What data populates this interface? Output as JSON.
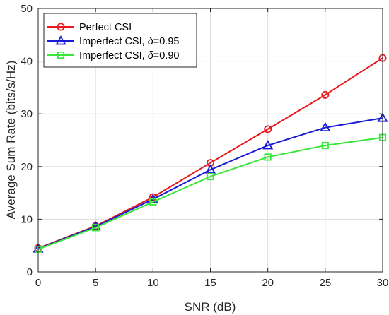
{
  "chart_data": {
    "type": "line",
    "xlabel": "SNR (dB)",
    "ylabel": "Average Sum Rate (bits/s/Hz)",
    "xlim": [
      0,
      30
    ],
    "ylim": [
      0,
      50
    ],
    "xticks": [
      0,
      5,
      10,
      15,
      20,
      25,
      30
    ],
    "yticks": [
      0,
      10,
      20,
      30,
      40,
      50
    ],
    "grid": true,
    "legend_position": "top-left",
    "x": [
      0,
      5,
      10,
      15,
      20,
      25,
      30
    ],
    "series": [
      {
        "name": "Perfect CSI",
        "name_prefix": "Perfect CSI",
        "name_symbol": "",
        "name_suffix": "",
        "values": [
          4.5,
          8.7,
          14.2,
          20.7,
          27.1,
          33.6,
          40.6
        ],
        "color": "#e8191e",
        "marker": "circle"
      },
      {
        "name": "Imperfect CSI, δ=0.95",
        "name_prefix": "Imperfect CSI, ",
        "name_symbol": "δ",
        "name_suffix": "=0.95",
        "values": [
          4.4,
          8.6,
          13.8,
          19.4,
          24.0,
          27.4,
          29.2
        ],
        "color": "#1a1ad6",
        "marker": "triangle"
      },
      {
        "name": "Imperfect CSI, δ=0.90",
        "name_prefix": "Imperfect CSI, ",
        "name_symbol": "δ",
        "name_suffix": "=0.90",
        "values": [
          4.3,
          8.4,
          13.3,
          18.1,
          21.8,
          24.0,
          25.5
        ],
        "color": "#38e838",
        "marker": "square"
      }
    ]
  }
}
